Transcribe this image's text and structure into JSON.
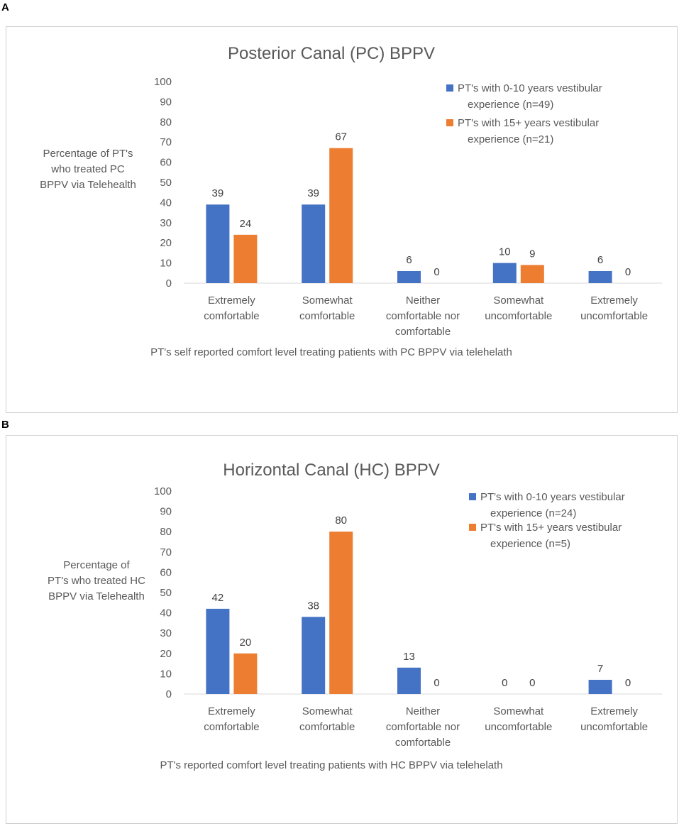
{
  "panels": [
    {
      "letter": "A"
    },
    {
      "letter": "B"
    }
  ],
  "chart_data": [
    {
      "type": "bar",
      "title": "Posterior Canal  (PC) BPPV",
      "ylabel": [
        "Percentage of PT's",
        "who treated PC",
        "BPPV via Telehealth"
      ],
      "xlabel": "PT's self reported comfort level treating patients with PC BPPV via telehelath",
      "ylim": [
        0,
        100
      ],
      "yticks": [
        0,
        10,
        20,
        30,
        40,
        50,
        60,
        70,
        80,
        90,
        100
      ],
      "categories": [
        [
          "Extremely",
          "comfortable"
        ],
        [
          "Somewhat",
          "comfortable"
        ],
        [
          "Neither",
          "comfortable nor",
          "comfortable"
        ],
        [
          "Somewhat",
          "uncomfortable"
        ],
        [
          "Extremely",
          "uncomfortable"
        ]
      ],
      "series": [
        {
          "name": [
            "PT's with 0-10 years vestibular",
            "experience (n=49)"
          ],
          "color": "#4472C4",
          "values": [
            39,
            39,
            6,
            10,
            6
          ]
        },
        {
          "name": [
            " PT's with 15+ years vestibular",
            "experience (n=21)"
          ],
          "color": "#ED7D31",
          "values": [
            24,
            67,
            0,
            9,
            0
          ]
        }
      ]
    },
    {
      "type": "bar",
      "title": "Horizontal Canal (HC) BPPV",
      "ylabel": [
        "Percentage of",
        "PT's who treated HC",
        "BPPV via Telehealth"
      ],
      "xlabel": "PT's reported comfort level treating patients with HC BPPV via telehelath",
      "ylim": [
        0,
        100
      ],
      "yticks": [
        0,
        10,
        20,
        30,
        40,
        50,
        60,
        70,
        80,
        90,
        100
      ],
      "categories": [
        [
          "Extremely",
          "comfortable"
        ],
        [
          "Somewhat",
          "comfortable"
        ],
        [
          "Neither",
          "comfortable nor",
          "comfortable"
        ],
        [
          "Somewhat",
          "uncomfortable"
        ],
        [
          "Extremely",
          "uncomfortable"
        ]
      ],
      "series": [
        {
          "name": [
            "PT's with 0-10 years vestibular",
            "experience (n=24)"
          ],
          "color": "#4472C4",
          "values": [
            42,
            38,
            13,
            0,
            7
          ]
        },
        {
          "name": [
            "PT's with 15+ years vestibular",
            "experience (n=5)"
          ],
          "color": "#ED7D31",
          "values": [
            20,
            80,
            0,
            0,
            0
          ]
        }
      ]
    }
  ]
}
